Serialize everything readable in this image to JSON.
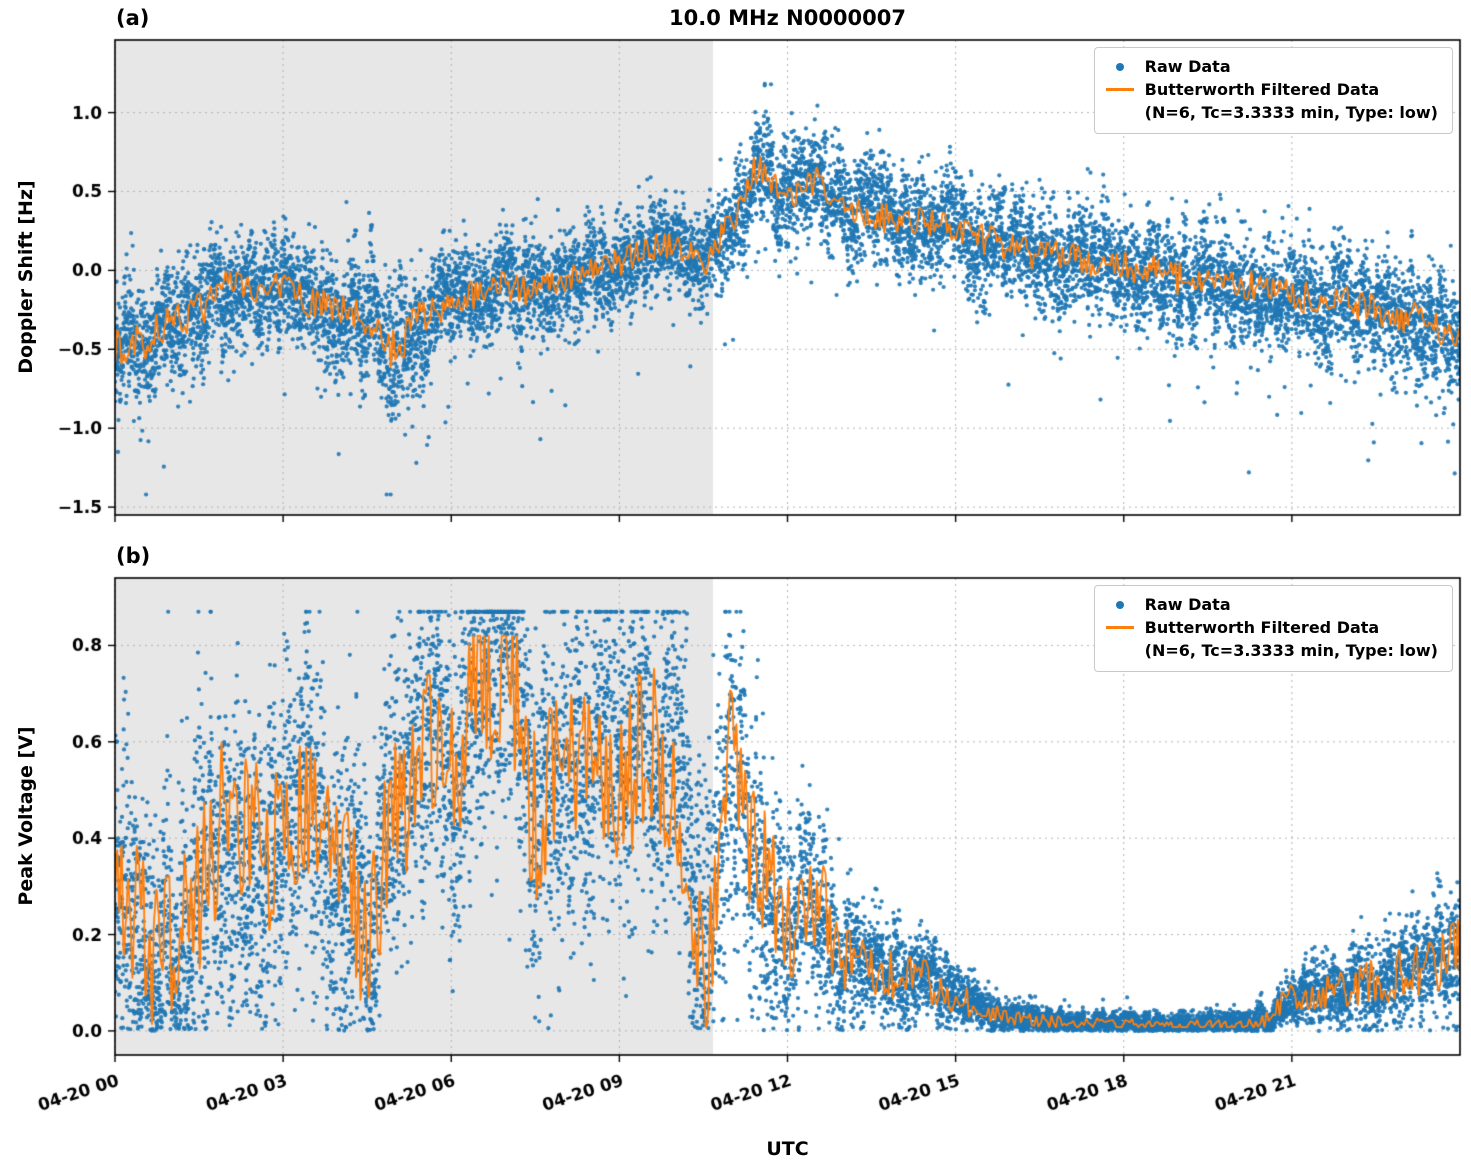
{
  "figure": {
    "title": "10.0 MHz N0000007",
    "xlabel": "UTC",
    "colors": {
      "raw": "#1f77b4",
      "filtered": "#ff7f0e",
      "shading": "#e7e7e7",
      "grid": "#b5b5b5",
      "axis": "#000000"
    },
    "legend": {
      "raw_label": "Raw Data",
      "filtered_label": "Butterworth Filtered Data",
      "filtered_sublabel": "(N=6, Tc=3.3333 min, Type: low)"
    },
    "xtick_hours": [
      0,
      3,
      6,
      9,
      12,
      15,
      18,
      21
    ],
    "xtick_labels": [
      "04-20 00",
      "04-20 03",
      "04-20 06",
      "04-20 09",
      "04-20 12",
      "04-20 15",
      "04-20 18",
      "04-20 21"
    ]
  },
  "chart_data": [
    {
      "panel": "a",
      "panel_label": "(a)",
      "type": "scatter",
      "ylabel": "Doppler Shift [Hz]",
      "ylim": [
        -1.55,
        1.46
      ],
      "yticks": [
        -1.5,
        -1.0,
        -0.5,
        0.0,
        0.5,
        1.0
      ],
      "ytick_labels": [
        "−1.5",
        "−1.0",
        "−0.5",
        "0.0",
        "0.5",
        "1.0"
      ],
      "x_range_hours": [
        0,
        24
      ],
      "xtick_hours": [
        0,
        3,
        6,
        9,
        12,
        15,
        18,
        21
      ],
      "xtick_labels": [
        "04-20 00",
        "04-20 03",
        "04-20 06",
        "04-20 09",
        "04-20 12",
        "04-20 15",
        "04-20 18",
        "04-20 21"
      ],
      "shaded_region_hours": [
        0,
        10.67
      ],
      "grid": true,
      "legend_position": "upper right",
      "series_names": [
        "Raw Data",
        "Butterworth Filtered Data"
      ],
      "filtered_keypoints": {
        "t_step_hours": 0.5,
        "values": [
          -0.5,
          -0.45,
          -0.33,
          -0.25,
          -0.1,
          -0.15,
          -0.1,
          -0.2,
          -0.25,
          -0.32,
          -0.5,
          -0.3,
          -0.2,
          -0.15,
          -0.1,
          -0.15,
          -0.05,
          0.0,
          0.05,
          0.15,
          0.15,
          0.05,
          0.3,
          0.65,
          0.45,
          0.55,
          0.4,
          0.35,
          0.32,
          0.3,
          0.25,
          0.2,
          0.15,
          0.1,
          0.1,
          0.05,
          0.02,
          0.0,
          -0.05,
          -0.05,
          -0.1,
          -0.1,
          -0.15,
          -0.2,
          -0.2,
          -0.25,
          -0.3,
          -0.35,
          -0.45
        ]
      },
      "raw_band_halfwidth": {
        "t_step_hours": 0.5,
        "values": [
          0.35,
          0.35,
          0.35,
          0.32,
          0.3,
          0.3,
          0.3,
          0.3,
          0.32,
          0.35,
          0.4,
          0.33,
          0.3,
          0.28,
          0.28,
          0.28,
          0.26,
          0.25,
          0.25,
          0.25,
          0.25,
          0.25,
          0.28,
          0.3,
          0.3,
          0.3,
          0.3,
          0.3,
          0.3,
          0.3,
          0.3,
          0.3,
          0.3,
          0.3,
          0.3,
          0.3,
          0.3,
          0.3,
          0.3,
          0.3,
          0.3,
          0.3,
          0.3,
          0.3,
          0.3,
          0.3,
          0.32,
          0.32,
          0.32
        ]
      },
      "seed": 7,
      "line_wiggle": 0.35,
      "clip": [
        -1.42,
        1.36
      ],
      "line_clip": [
        -0.75,
        0.72
      ]
    },
    {
      "panel": "b",
      "panel_label": "(b)",
      "type": "scatter",
      "ylabel": "Peak Voltage [V]",
      "ylim": [
        -0.05,
        0.94
      ],
      "yticks": [
        0.0,
        0.2,
        0.4,
        0.6,
        0.8
      ],
      "ytick_labels": [
        "0.0",
        "0.2",
        "0.4",
        "0.6",
        "0.8"
      ],
      "x_range_hours": [
        0,
        24
      ],
      "xtick_hours": [
        0,
        3,
        6,
        9,
        12,
        15,
        18,
        21
      ],
      "xtick_labels": [
        "04-20 00",
        "04-20 03",
        "04-20 06",
        "04-20 09",
        "04-20 12",
        "04-20 15",
        "04-20 18",
        "04-20 21"
      ],
      "shaded_region_hours": [
        0,
        10.67
      ],
      "grid": true,
      "legend_position": "upper right",
      "series_names": [
        "Raw Data",
        "Butterworth Filtered Data"
      ],
      "filtered_keypoints": {
        "t_step_hours": 0.5,
        "values": [
          0.25,
          0.2,
          0.15,
          0.3,
          0.45,
          0.4,
          0.35,
          0.5,
          0.3,
          0.22,
          0.45,
          0.6,
          0.5,
          0.7,
          0.75,
          0.45,
          0.55,
          0.6,
          0.5,
          0.6,
          0.5,
          0.12,
          0.55,
          0.35,
          0.2,
          0.28,
          0.15,
          0.13,
          0.12,
          0.1,
          0.07,
          0.04,
          0.025,
          0.02,
          0.02,
          0.015,
          0.015,
          0.015,
          0.01,
          0.015,
          0.015,
          0.02,
          0.07,
          0.08,
          0.09,
          0.1,
          0.12,
          0.13,
          0.18
        ]
      },
      "raw_band_halfwidth": {
        "t_step_hours": 0.5,
        "values": [
          0.3,
          0.3,
          0.3,
          0.3,
          0.3,
          0.3,
          0.3,
          0.3,
          0.3,
          0.3,
          0.3,
          0.3,
          0.3,
          0.3,
          0.3,
          0.3,
          0.3,
          0.3,
          0.3,
          0.3,
          0.3,
          0.3,
          0.3,
          0.25,
          0.2,
          0.18,
          0.12,
          0.1,
          0.09,
          0.08,
          0.06,
          0.04,
          0.03,
          0.025,
          0.02,
          0.02,
          0.02,
          0.02,
          0.02,
          0.02,
          0.02,
          0.03,
          0.05,
          0.06,
          0.07,
          0.08,
          0.09,
          0.1,
          0.12
        ]
      },
      "seed": 21,
      "line_wiggle": 0.6,
      "clip": [
        0.0,
        0.87
      ],
      "line_clip": [
        0.008,
        0.82
      ]
    }
  ]
}
